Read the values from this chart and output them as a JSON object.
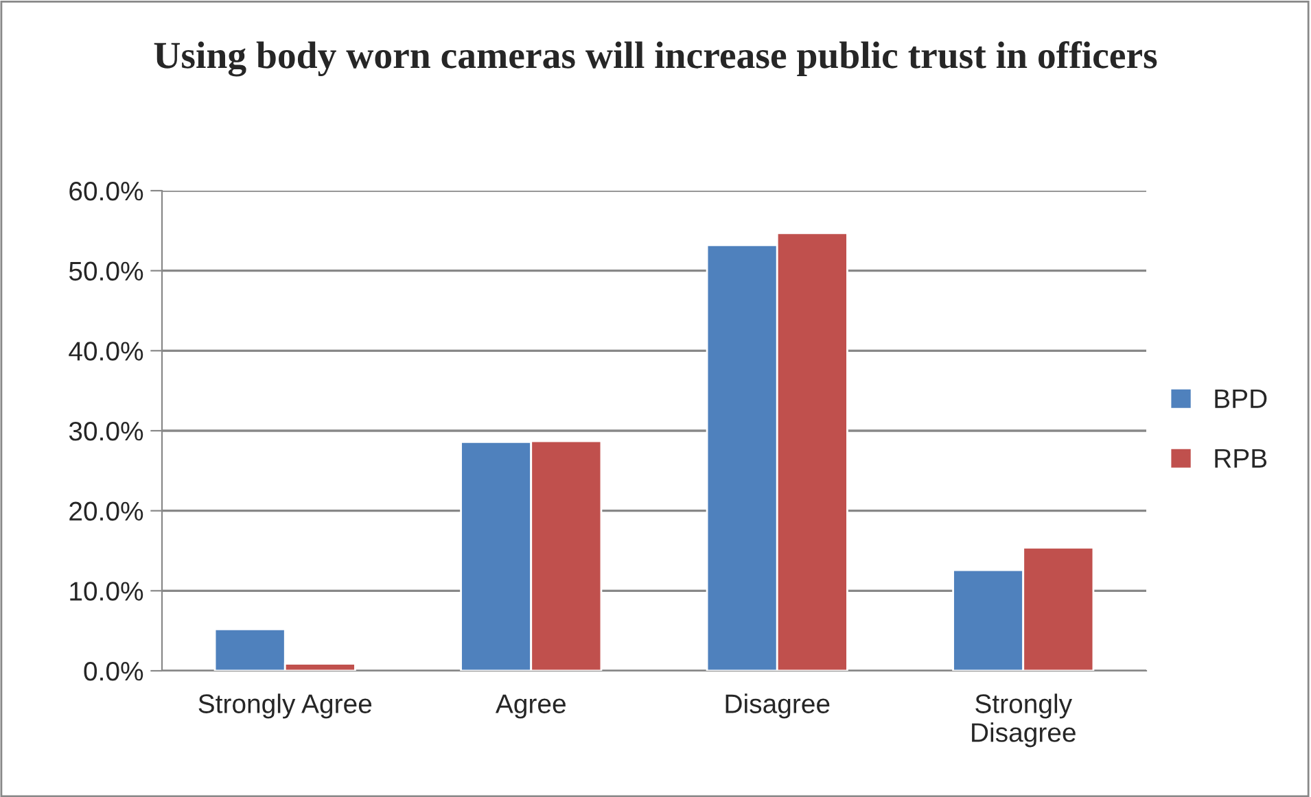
{
  "chart_data": {
    "type": "bar",
    "title": "Using body worn cameras will increase public trust in officers",
    "categories": [
      "Strongly Agree",
      "Agree",
      "Disagree",
      "Strongly\nDisagree"
    ],
    "series": [
      {
        "name": "BPD",
        "color": "#4f81bd",
        "values": [
          5.2,
          28.6,
          53.2,
          12.6
        ]
      },
      {
        "name": "RPB",
        "color": "#c0504d",
        "values": [
          0.9,
          28.7,
          54.7,
          15.4
        ]
      }
    ],
    "ylim": [
      0,
      60
    ],
    "yticks": [
      {
        "value": 0,
        "label": "0.0%"
      },
      {
        "value": 10,
        "label": "10.0%"
      },
      {
        "value": 20,
        "label": "20.0%"
      },
      {
        "value": 30,
        "label": "30.0%"
      },
      {
        "value": 40,
        "label": "40.0%"
      },
      {
        "value": 50,
        "label": "50.0%"
      },
      {
        "value": 60,
        "label": "60.0%"
      }
    ],
    "grid": "y",
    "legend": "right"
  }
}
